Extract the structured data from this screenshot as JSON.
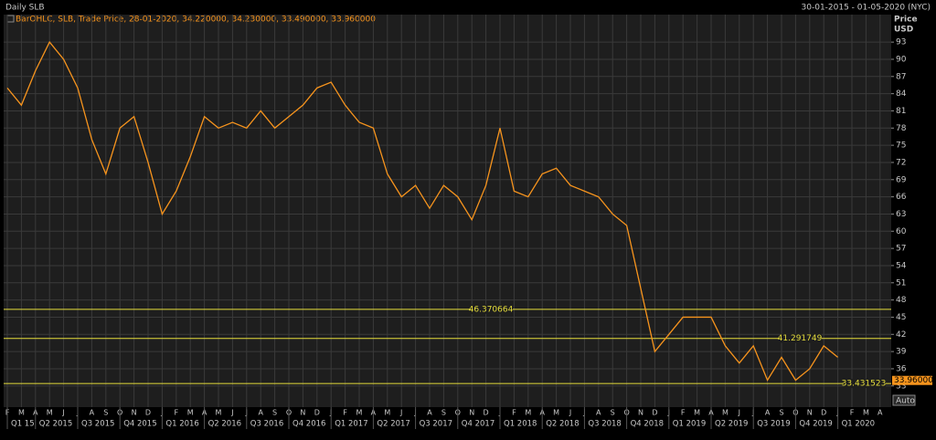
{
  "chart_data": {
    "type": "line",
    "title": "Daily SLB",
    "date_range": "30-01-2015 - 01-05-2020 (NYC)",
    "legend_text": "BarOHLC, SLB, Trade Price, 28-01-2020, 34.220000, 34.230000, 33.490000, 33.960000",
    "y_label": "Price",
    "y_unit": "USD",
    "button": "Auto",
    "categories": [
      "F",
      "M",
      "A",
      "M",
      "J",
      "J",
      "A",
      "S",
      "O",
      "N",
      "D",
      "J",
      "F",
      "M",
      "A",
      "M",
      "J",
      "J",
      "A",
      "S",
      "O",
      "N",
      "D",
      "J",
      "F",
      "M",
      "A",
      "M",
      "J",
      "J",
      "A",
      "S",
      "O",
      "N",
      "D",
      "J",
      "F",
      "M",
      "A",
      "M",
      "J",
      "J",
      "A",
      "S",
      "O",
      "N",
      "D",
      "J",
      "F",
      "M",
      "A",
      "M",
      "J",
      "J",
      "A",
      "S",
      "O",
      "N",
      "D",
      "J",
      "F",
      "M",
      "A"
    ],
    "quarters": [
      "Q1 15",
      "Q2 2015",
      "Q3 2015",
      "Q4 2015",
      "Q1 2016",
      "Q2 2016",
      "Q3 2016",
      "Q4 2016",
      "Q1 2017",
      "Q2 2017",
      "Q3 2017",
      "Q4 2017",
      "Q1 2018",
      "Q2 2018",
      "Q3 2018",
      "Q4 2018",
      "Q1 2019",
      "Q2 2019",
      "Q3 2019",
      "Q4 2019",
      "Q1 2020"
    ],
    "series": [
      {
        "name": "SLB",
        "color": "#f7941d",
        "values": [
          85,
          82,
          88,
          93,
          90,
          85,
          76,
          70,
          78,
          80,
          72,
          63,
          67,
          73,
          80,
          78,
          79,
          78,
          81,
          78,
          80,
          82,
          85,
          86,
          82,
          79,
          78,
          70,
          66,
          68,
          64,
          68,
          66,
          62,
          68,
          78,
          67,
          66,
          70,
          71,
          68,
          67,
          66,
          63,
          61,
          50,
          39,
          42,
          45,
          45,
          45,
          40,
          37,
          40,
          34,
          38,
          34,
          36,
          40,
          38,
          null,
          null,
          null
        ]
      }
    ],
    "levels": [
      46.370664,
      41.291749,
      33.431523
    ],
    "level_color": "#e6de3c",
    "last_price": {
      "value": 33.96,
      "label": "33.960000"
    },
    "ylim": [
      29.3,
      97.8
    ],
    "yticks": [
      33,
      36,
      39,
      42,
      45,
      48,
      51,
      54,
      57,
      60,
      63,
      66,
      69,
      72,
      75,
      78,
      81,
      84,
      87,
      90,
      93
    ],
    "grid": true
  }
}
